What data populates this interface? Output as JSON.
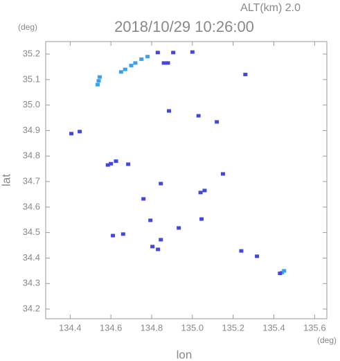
{
  "chart_data": {
    "type": "scatter",
    "title": "2018/10/29 10:26:00",
    "subtitle": "ALT(km) 2.0",
    "x_label": "lon",
    "y_label": "lat",
    "x_unit": "(deg)",
    "y_unit": "(deg)",
    "xlim": [
      134.28,
      135.66
    ],
    "ylim": [
      34.162,
      35.249
    ],
    "xticks": [
      134.4,
      134.6,
      134.8,
      {
        "value": 135.0,
        "label": "135.0"
      },
      135.2,
      135.4,
      135.6
    ],
    "yticks": [
      34.2,
      34.3,
      34.4,
      34.5,
      34.6,
      34.7,
      34.8,
      34.9,
      {
        "value": 35.0,
        "label": "35.0"
      },
      35.1,
      35.2
    ],
    "series": [
      {
        "color": "#3aa0f0",
        "x": [
          134.535,
          134.54,
          134.545,
          134.65,
          134.67,
          134.7,
          134.72,
          134.75,
          134.78,
          135.45,
          135.44
        ],
        "y": [
          35.08,
          35.095,
          35.11,
          35.13,
          35.14,
          35.155,
          35.165,
          35.18,
          35.19,
          34.35,
          34.343
        ]
      },
      {
        "color": "#4048e0",
        "x": [
          134.83,
          134.906,
          135.0,
          134.86,
          134.88,
          135.26,
          134.885,
          135.03,
          135.12,
          134.406,
          134.447,
          134.585,
          134.6,
          134.625,
          134.685,
          134.845,
          135.15,
          135.04,
          135.06,
          134.76,
          134.794,
          135.045,
          134.933,
          134.61,
          134.66,
          134.845,
          134.804,
          134.831,
          135.24,
          135.317,
          135.43
        ],
        "y": [
          35.206,
          35.206,
          35.208,
          35.165,
          35.165,
          35.12,
          34.977,
          34.958,
          34.934,
          34.888,
          34.896,
          34.765,
          34.77,
          34.78,
          34.768,
          34.692,
          34.73,
          34.657,
          34.665,
          34.632,
          34.548,
          34.553,
          34.518,
          34.488,
          34.494,
          34.472,
          34.445,
          34.434,
          34.428,
          34.407,
          34.34
        ]
      }
    ]
  }
}
